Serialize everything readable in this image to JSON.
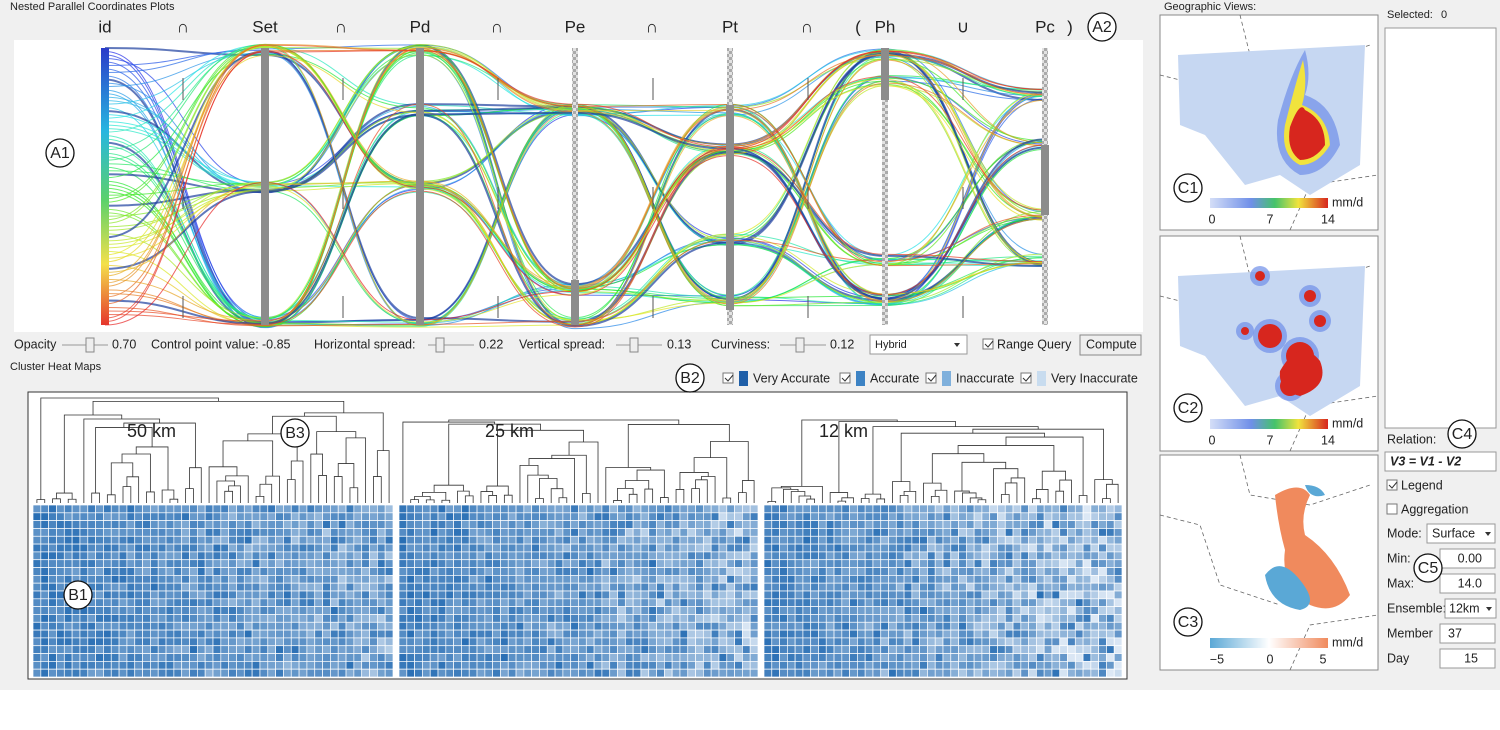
{
  "pc_panel": {
    "title": "Nested Parallel Coordinates Plots",
    "axes": [
      "id",
      "∩",
      "Set",
      "∩",
      "Pd",
      "∩",
      "Pe",
      "∩",
      "Pt",
      "∩",
      "(",
      "Ph",
      "∪",
      "Pc",
      ")"
    ],
    "annotations": [
      "A1",
      "A2"
    ]
  },
  "controls": {
    "opacity_label": "Opacity",
    "opacity": "0.70",
    "control_point_label": "Control point value:",
    "control_point": "-0.85",
    "h_spread_label": "Horizontal spread:",
    "h_spread": "0.22",
    "v_spread_label": "Vertical spread:",
    "v_spread": "0.13",
    "curviness_label": "Curviness:",
    "curviness": "0.12",
    "mode": "Hybrid",
    "range_query": "Range Query",
    "compute": "Compute"
  },
  "heatmap_panel": {
    "title": "Cluster Heat Maps",
    "legend": [
      "Very Accurate",
      "Accurate",
      "Inaccurate",
      "Very Inaccurate"
    ],
    "resolutions": [
      "50 km",
      "25 km",
      "12 km"
    ],
    "annotations": [
      "B1",
      "B2",
      "B3"
    ]
  },
  "geo_panel": {
    "title": "Geographic Views:",
    "maps": [
      {
        "label": "C1",
        "ticks": [
          "0",
          "7",
          "14"
        ],
        "unit": "mm/d"
      },
      {
        "label": "C2",
        "ticks": [
          "0",
          "7",
          "14"
        ],
        "unit": "mm/d"
      },
      {
        "label": "C3",
        "ticks": [
          "−5",
          "0",
          "5"
        ],
        "unit": "mm/d"
      }
    ]
  },
  "side_panel": {
    "selected_label": "Selected:",
    "selected": "0",
    "relation_label": "Relation:",
    "relation": "V3 = V1 - V2",
    "legend": "Legend",
    "aggregation": "Aggregation",
    "mode_label": "Mode:",
    "mode": "Surface",
    "min_label": "Min:",
    "min": "0.00",
    "max_label": "Max:",
    "max": "14.0",
    "ensemble_label": "Ensemble:",
    "ensemble": "12km",
    "member_label": "Member",
    "member": "37",
    "day_label": "Day",
    "day": "15",
    "annotations": [
      "C4",
      "C5"
    ]
  }
}
